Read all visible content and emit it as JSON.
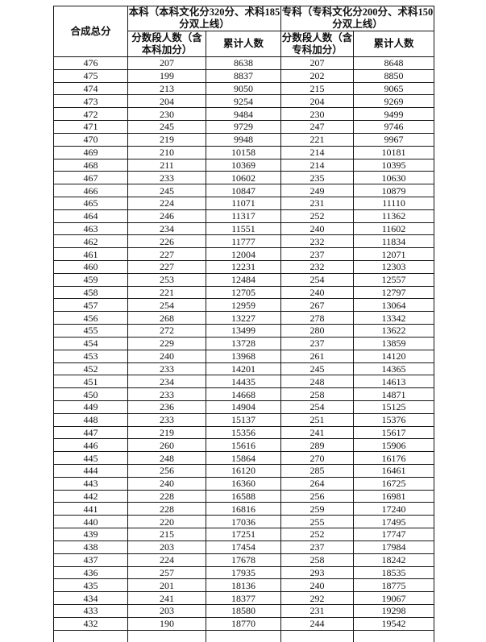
{
  "table": {
    "header": {
      "composite_score": "合成总分",
      "benke_group": "本科（本科文化分320分、术科185分双上线）",
      "zhuanke_group": "专科（专科文化分200分、术科150分双上线）",
      "benke_segment": "分数段人数（含本科加分）",
      "benke_cumulative": "累计人数",
      "zhuanke_segment": "分数段人数（含专科加分）",
      "zhuanke_cumulative": "累计人数"
    },
    "cell_names": [
      "cell-composite-score",
      "cell-benke-segment-count",
      "cell-benke-cumulative-count",
      "cell-zhuanke-segment-count",
      "cell-zhuanke-cumulative-count"
    ],
    "rows": [
      [
        476,
        207,
        8638,
        207,
        8648
      ],
      [
        475,
        199,
        8837,
        202,
        8850
      ],
      [
        474,
        213,
        9050,
        215,
        9065
      ],
      [
        473,
        204,
        9254,
        204,
        9269
      ],
      [
        472,
        230,
        9484,
        230,
        9499
      ],
      [
        471,
        245,
        9729,
        247,
        9746
      ],
      [
        470,
        219,
        9948,
        221,
        9967
      ],
      [
        469,
        210,
        10158,
        214,
        10181
      ],
      [
        468,
        211,
        10369,
        214,
        10395
      ],
      [
        467,
        233,
        10602,
        235,
        10630
      ],
      [
        466,
        245,
        10847,
        249,
        10879
      ],
      [
        465,
        224,
        11071,
        231,
        11110
      ],
      [
        464,
        246,
        11317,
        252,
        11362
      ],
      [
        463,
        234,
        11551,
        240,
        11602
      ],
      [
        462,
        226,
        11777,
        232,
        11834
      ],
      [
        461,
        227,
        12004,
        237,
        12071
      ],
      [
        460,
        227,
        12231,
        232,
        12303
      ],
      [
        459,
        253,
        12484,
        254,
        12557
      ],
      [
        458,
        221,
        12705,
        240,
        12797
      ],
      [
        457,
        254,
        12959,
        267,
        13064
      ],
      [
        456,
        268,
        13227,
        278,
        13342
      ],
      [
        455,
        272,
        13499,
        280,
        13622
      ],
      [
        454,
        229,
        13728,
        237,
        13859
      ],
      [
        453,
        240,
        13968,
        261,
        14120
      ],
      [
        452,
        233,
        14201,
        245,
        14365
      ],
      [
        451,
        234,
        14435,
        248,
        14613
      ],
      [
        450,
        233,
        14668,
        258,
        14871
      ],
      [
        449,
        236,
        14904,
        254,
        15125
      ],
      [
        448,
        233,
        15137,
        251,
        15376
      ],
      [
        447,
        219,
        15356,
        241,
        15617
      ],
      [
        446,
        260,
        15616,
        289,
        15906
      ],
      [
        445,
        248,
        15864,
        270,
        16176
      ],
      [
        444,
        256,
        16120,
        285,
        16461
      ],
      [
        443,
        240,
        16360,
        264,
        16725
      ],
      [
        442,
        228,
        16588,
        256,
        16981
      ],
      [
        441,
        228,
        16816,
        259,
        17240
      ],
      [
        440,
        220,
        17036,
        255,
        17495
      ],
      [
        439,
        215,
        17251,
        252,
        17747
      ],
      [
        438,
        203,
        17454,
        237,
        17984
      ],
      [
        437,
        224,
        17678,
        258,
        18242
      ],
      [
        436,
        257,
        17935,
        293,
        18535
      ],
      [
        435,
        201,
        18136,
        240,
        18775
      ],
      [
        434,
        241,
        18377,
        292,
        19067
      ],
      [
        433,
        203,
        18580,
        231,
        19298
      ],
      [
        432,
        190,
        18770,
        244,
        19542
      ]
    ]
  }
}
